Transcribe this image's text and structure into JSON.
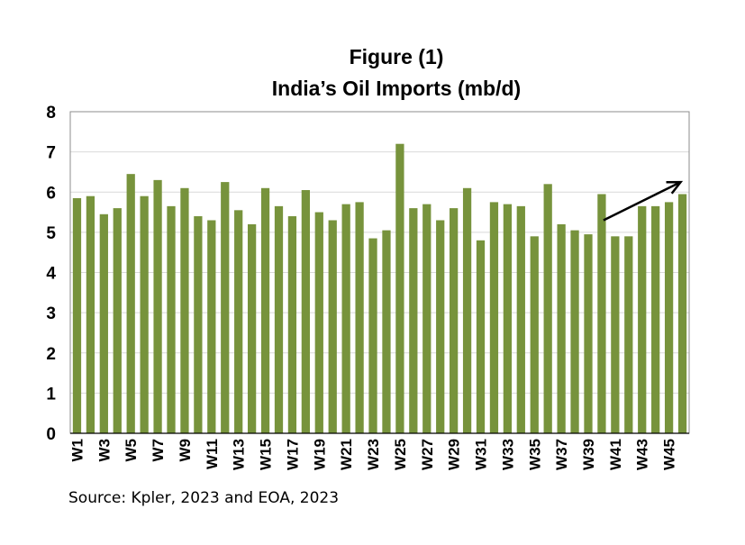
{
  "chart_data": {
    "type": "bar",
    "title": "Figure (1)",
    "subtitle": "India’s Oil Imports (mb/d)",
    "xlabel": "",
    "ylabel": "",
    "ylim": [
      0,
      8
    ],
    "yticks": [
      0,
      1,
      2,
      3,
      4,
      5,
      6,
      7,
      8
    ],
    "grid": true,
    "legend": "none",
    "bar_color": "#77933C",
    "categories": [
      "W1",
      "W2",
      "W3",
      "W4",
      "W5",
      "W6",
      "W7",
      "W8",
      "W9",
      "W10",
      "W11",
      "W12",
      "W13",
      "W14",
      "W15",
      "W16",
      "W17",
      "W18",
      "W19",
      "W20",
      "W21",
      "W22",
      "W23",
      "W24",
      "W25",
      "W26",
      "W27",
      "W28",
      "W29",
      "W30",
      "W31",
      "W32",
      "W33",
      "W34",
      "W35",
      "W36",
      "W37",
      "W38",
      "W39",
      "W40",
      "W41",
      "W42",
      "W43",
      "W44",
      "W45",
      "W46"
    ],
    "tick_labels": [
      "W1",
      "W3",
      "W5",
      "W7",
      "W9",
      "W11",
      "W13",
      "W15",
      "W17",
      "W19",
      "W21",
      "W23",
      "W25",
      "W27",
      "W29",
      "W31",
      "W33",
      "W35",
      "W37",
      "W39",
      "W41",
      "W43",
      "W45"
    ],
    "values": [
      5.85,
      5.9,
      5.45,
      5.6,
      6.45,
      5.9,
      6.3,
      5.65,
      6.1,
      5.4,
      5.3,
      6.25,
      5.55,
      5.2,
      6.1,
      5.65,
      5.4,
      6.05,
      5.5,
      5.3,
      5.7,
      5.75,
      4.85,
      5.05,
      7.2,
      5.6,
      5.7,
      5.3,
      5.6,
      6.1,
      4.8,
      5.75,
      5.7,
      5.65,
      4.9,
      6.2,
      5.2,
      5.05,
      4.95,
      5.95,
      4.9,
      4.9,
      5.65,
      5.65,
      5.75,
      5.95
    ],
    "annotation": {
      "type": "trend-arrow",
      "from": [
        "W40",
        5.3
      ],
      "to": [
        "W46",
        6.25
      ]
    }
  },
  "source": "Source: Kpler, 2023 and EOA, 2023"
}
